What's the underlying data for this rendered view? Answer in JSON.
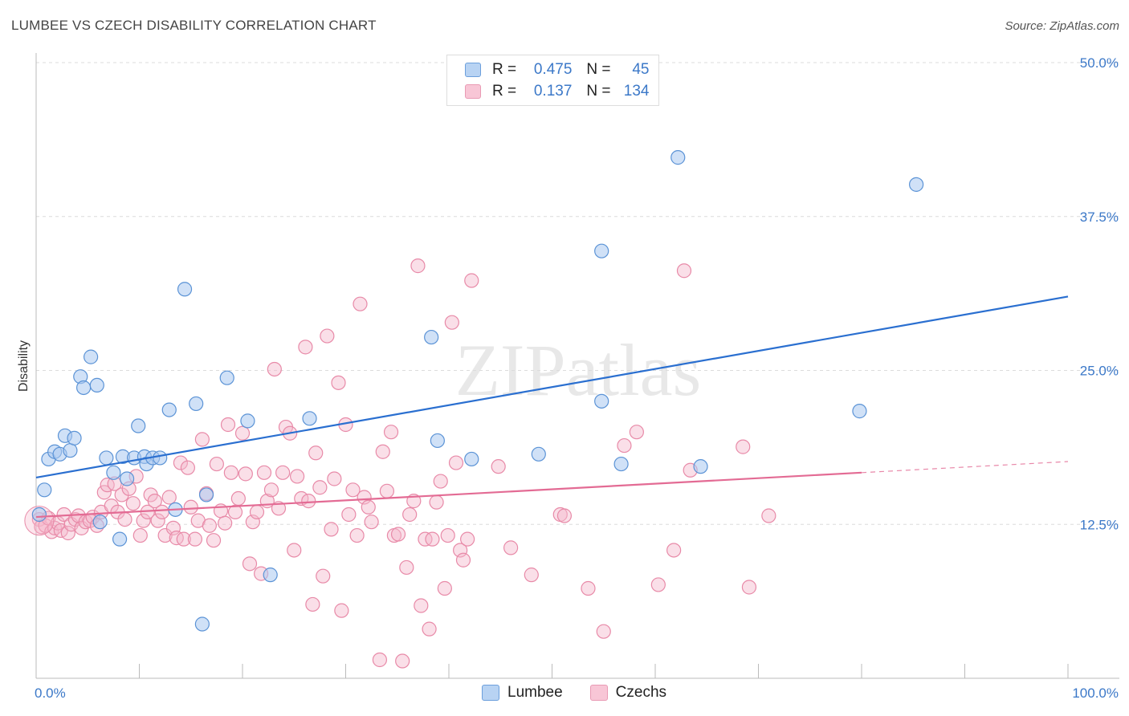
{
  "header": {
    "title": "LUMBEE VS CZECH DISABILITY CORRELATION CHART",
    "source": "Source: ZipAtlas.com"
  },
  "legend": {
    "rows": [
      {
        "r_label": "R =",
        "r_value": "0.475",
        "n_label": "N =",
        "n_value": "45"
      },
      {
        "r_label": "R =",
        "r_value": "0.137",
        "n_label": "N =",
        "n_value": "134"
      }
    ]
  },
  "colors": {
    "lumbee_fill": "#a9c8f0",
    "lumbee_stroke": "#5b93d6",
    "lumbee_line": "#2a6fd0",
    "czech_fill": "#f5b8cb",
    "czech_stroke": "#e88aa8",
    "czech_line": "#e36b94",
    "tick_text": "#3b78c8"
  },
  "chart_data": {
    "type": "scatter",
    "watermark": "ZIPatlas",
    "ylabel": "Disability",
    "xlim": [
      0,
      100
    ],
    "ylim": [
      0,
      50
    ],
    "x_tick_labels": [
      "0.0%",
      "100.0%"
    ],
    "y_ticks": [
      12.5,
      25.0,
      37.5,
      50.0
    ],
    "y_tick_labels": [
      "12.5%",
      "25.0%",
      "37.5%",
      "50.0%"
    ],
    "grid": "dashed horizontal",
    "legend_position": "top-center",
    "series": [
      {
        "name": "Lumbee",
        "r": 0.475,
        "n": 45,
        "trend": {
          "x": [
            0,
            100
          ],
          "y": [
            16.3,
            31.0
          ],
          "solid_to": 100
        },
        "points": [
          [
            0.3,
            13.3
          ],
          [
            0.8,
            15.3
          ],
          [
            1.2,
            17.8
          ],
          [
            1.8,
            18.4
          ],
          [
            2.3,
            18.2
          ],
          [
            2.8,
            19.7
          ],
          [
            3.3,
            18.5
          ],
          [
            3.7,
            19.5
          ],
          [
            4.3,
            24.5
          ],
          [
            4.6,
            23.6
          ],
          [
            5.3,
            26.1
          ],
          [
            5.9,
            23.8
          ],
          [
            6.2,
            12.7
          ],
          [
            6.8,
            17.9
          ],
          [
            7.5,
            16.7
          ],
          [
            8.1,
            11.3
          ],
          [
            8.4,
            18.0
          ],
          [
            8.8,
            16.2
          ],
          [
            9.5,
            17.9
          ],
          [
            9.9,
            20.5
          ],
          [
            10.5,
            18.0
          ],
          [
            10.7,
            17.4
          ],
          [
            11.3,
            17.9
          ],
          [
            12.0,
            17.9
          ],
          [
            12.9,
            21.8
          ],
          [
            13.5,
            13.7
          ],
          [
            14.4,
            31.6
          ],
          [
            15.5,
            22.3
          ],
          [
            16.5,
            14.9
          ],
          [
            16.1,
            4.4
          ],
          [
            18.5,
            24.4
          ],
          [
            20.5,
            20.9
          ],
          [
            22.7,
            8.4
          ],
          [
            26.5,
            21.1
          ],
          [
            38.3,
            27.7
          ],
          [
            38.9,
            19.3
          ],
          [
            42.2,
            17.8
          ],
          [
            48.7,
            18.2
          ],
          [
            54.8,
            34.7
          ],
          [
            54.8,
            22.5
          ],
          [
            56.7,
            17.4
          ],
          [
            62.2,
            42.3
          ],
          [
            64.4,
            17.2
          ],
          [
            79.8,
            21.7
          ],
          [
            85.3,
            40.1
          ]
        ]
      },
      {
        "name": "Czechs",
        "r": 0.137,
        "n": 134,
        "trend": {
          "x": [
            0,
            100
          ],
          "y": [
            13.1,
            17.6
          ],
          "solid_to": 80
        },
        "points": [
          [
            0.3,
            12.9
          ],
          [
            0.5,
            12.3
          ],
          [
            0.9,
            12.4
          ],
          [
            1.2,
            13.0
          ],
          [
            1.5,
            11.9
          ],
          [
            1.8,
            12.2
          ],
          [
            2.1,
            12.6
          ],
          [
            2.4,
            12.0
          ],
          [
            2.7,
            13.3
          ],
          [
            3.1,
            11.8
          ],
          [
            3.4,
            12.5
          ],
          [
            3.8,
            12.9
          ],
          [
            4.1,
            13.2
          ],
          [
            4.4,
            12.2
          ],
          [
            4.8,
            12.7
          ],
          [
            5.2,
            12.8
          ],
          [
            5.5,
            13.1
          ],
          [
            5.9,
            12.4
          ],
          [
            6.3,
            13.5
          ],
          [
            6.6,
            15.1
          ],
          [
            6.9,
            15.7
          ],
          [
            7.3,
            14.0
          ],
          [
            7.6,
            15.8
          ],
          [
            7.9,
            13.5
          ],
          [
            8.3,
            14.9
          ],
          [
            8.6,
            12.9
          ],
          [
            9.0,
            15.4
          ],
          [
            9.4,
            14.2
          ],
          [
            9.7,
            16.4
          ],
          [
            10.1,
            11.6
          ],
          [
            10.4,
            12.8
          ],
          [
            10.8,
            13.5
          ],
          [
            11.1,
            14.9
          ],
          [
            11.5,
            14.4
          ],
          [
            11.8,
            12.8
          ],
          [
            12.2,
            13.5
          ],
          [
            12.5,
            11.6
          ],
          [
            12.9,
            14.7
          ],
          [
            13.3,
            12.2
          ],
          [
            13.6,
            11.4
          ],
          [
            14.0,
            17.5
          ],
          [
            14.3,
            11.3
          ],
          [
            14.7,
            17.1
          ],
          [
            15.0,
            13.9
          ],
          [
            15.4,
            11.3
          ],
          [
            15.7,
            12.8
          ],
          [
            16.1,
            19.4
          ],
          [
            16.5,
            15.0
          ],
          [
            16.8,
            12.4
          ],
          [
            17.2,
            11.2
          ],
          [
            17.5,
            17.4
          ],
          [
            17.9,
            13.6
          ],
          [
            18.3,
            12.6
          ],
          [
            18.6,
            20.6
          ],
          [
            18.9,
            16.7
          ],
          [
            19.3,
            13.5
          ],
          [
            19.6,
            14.6
          ],
          [
            20.0,
            19.9
          ],
          [
            20.3,
            16.6
          ],
          [
            20.7,
            9.3
          ],
          [
            21.0,
            12.7
          ],
          [
            21.4,
            13.5
          ],
          [
            21.8,
            8.5
          ],
          [
            22.1,
            16.7
          ],
          [
            22.4,
            14.4
          ],
          [
            22.8,
            15.3
          ],
          [
            23.1,
            25.1
          ],
          [
            23.5,
            13.8
          ],
          [
            23.9,
            16.7
          ],
          [
            24.2,
            20.4
          ],
          [
            24.6,
            19.9
          ],
          [
            25.0,
            10.4
          ],
          [
            25.3,
            16.4
          ],
          [
            25.7,
            14.6
          ],
          [
            26.1,
            26.9
          ],
          [
            26.4,
            14.4
          ],
          [
            26.8,
            6.0
          ],
          [
            27.1,
            18.3
          ],
          [
            27.5,
            15.5
          ],
          [
            27.8,
            8.3
          ],
          [
            28.2,
            27.8
          ],
          [
            28.6,
            12.1
          ],
          [
            28.9,
            16.2
          ],
          [
            29.3,
            24.0
          ],
          [
            29.6,
            5.5
          ],
          [
            30.0,
            20.6
          ],
          [
            30.3,
            13.3
          ],
          [
            30.7,
            15.3
          ],
          [
            31.1,
            11.6
          ],
          [
            31.4,
            30.4
          ],
          [
            31.8,
            14.7
          ],
          [
            32.2,
            13.9
          ],
          [
            32.5,
            12.7
          ],
          [
            33.3,
            1.5
          ],
          [
            33.6,
            18.4
          ],
          [
            34.0,
            15.2
          ],
          [
            34.4,
            20.0
          ],
          [
            34.7,
            11.6
          ],
          [
            35.1,
            11.7
          ],
          [
            35.5,
            1.4
          ],
          [
            35.9,
            9.0
          ],
          [
            36.2,
            13.3
          ],
          [
            36.6,
            14.4
          ],
          [
            37.0,
            33.5
          ],
          [
            37.3,
            5.9
          ],
          [
            37.7,
            11.3
          ],
          [
            38.1,
            4.0
          ],
          [
            38.4,
            11.3
          ],
          [
            38.8,
            14.3
          ],
          [
            39.2,
            16.0
          ],
          [
            39.6,
            7.3
          ],
          [
            39.9,
            11.6
          ],
          [
            40.3,
            28.9
          ],
          [
            40.7,
            17.5
          ],
          [
            41.1,
            10.4
          ],
          [
            41.4,
            9.6
          ],
          [
            41.8,
            11.3
          ],
          [
            42.2,
            32.3
          ],
          [
            44.8,
            17.2
          ],
          [
            46.0,
            10.6
          ],
          [
            48.0,
            8.4
          ],
          [
            50.8,
            13.3
          ],
          [
            51.2,
            13.2
          ],
          [
            53.5,
            7.3
          ],
          [
            55.0,
            3.8
          ],
          [
            57.0,
            18.9
          ],
          [
            58.2,
            20.0
          ],
          [
            60.3,
            7.6
          ],
          [
            61.8,
            10.4
          ],
          [
            62.8,
            33.1
          ],
          [
            63.4,
            16.9
          ],
          [
            68.5,
            18.8
          ],
          [
            69.1,
            7.4
          ],
          [
            71.0,
            13.2
          ]
        ]
      }
    ]
  },
  "bottom_legend": [
    {
      "label": "Lumbee"
    },
    {
      "label": "Czechs"
    }
  ]
}
